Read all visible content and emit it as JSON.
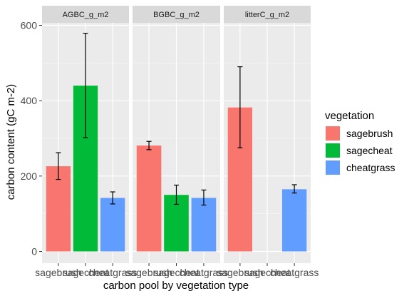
{
  "chart_data": {
    "type": "bar",
    "facets": [
      "AGBC_g_m2",
      "BGBC_g_m2",
      "litterC_g_m2"
    ],
    "categories": [
      "sagebrush",
      "sagecheat",
      "cheatgrass"
    ],
    "series": [
      {
        "facet": "AGBC_g_m2",
        "values": [
          226,
          440,
          142
        ],
        "error_low": [
          191,
          302,
          126
        ],
        "error_high": [
          262,
          579,
          158
        ]
      },
      {
        "facet": "BGBC_g_m2",
        "values": [
          281,
          150,
          142
        ],
        "error_low": [
          270,
          125,
          123
        ],
        "error_high": [
          292,
          176,
          163
        ]
      },
      {
        "facet": "litterC_g_m2",
        "values": [
          382,
          null,
          165
        ],
        "error_low": [
          275,
          null,
          155
        ],
        "error_high": [
          490,
          null,
          177
        ]
      }
    ],
    "xlabel": "carbon pool by vegetation type",
    "ylabel": "carbon content (gC m-2)",
    "ylim": [
      0,
      620
    ],
    "yticks": [
      0,
      200,
      400,
      600
    ],
    "grid": true,
    "legend": {
      "title": "vegetation",
      "placement": "right",
      "entries": [
        {
          "label": "sagebrush",
          "color": "#F8766D"
        },
        {
          "label": "sagecheat",
          "color": "#00BA38"
        },
        {
          "label": "cheatgrass",
          "color": "#619CFF"
        }
      ]
    },
    "colors": {
      "panel_bg": "#EBEBEB",
      "strip_bg": "#D9D9D9",
      "grid_major": "#FFFFFF"
    }
  }
}
